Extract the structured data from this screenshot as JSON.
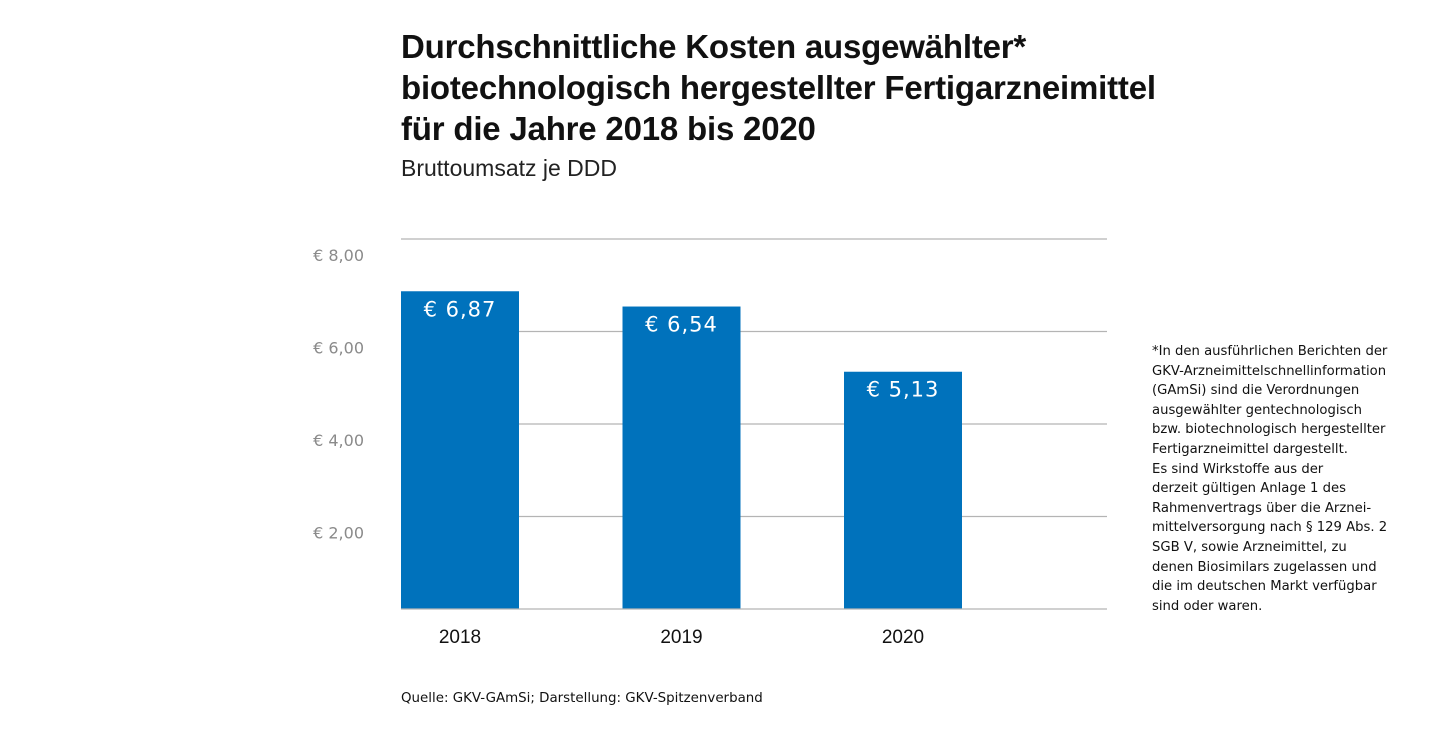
{
  "title_lines": [
    "Durchschnittliche Kosten ausgewählter*",
    "biotechnologisch hergestellter Fertigarzneimittel",
    "für die Jahre 2018 bis 2020"
  ],
  "subtitle": "Bruttoumsatz je DDD",
  "chart_data": {
    "type": "bar",
    "title": "Durchschnittliche Kosten ausgewählter* biotechnologisch hergestellter Fertigarzneimittel für die Jahre 2018 bis 2020",
    "subtitle": "Bruttoumsatz je DDD",
    "categories": [
      "2018",
      "2019",
      "2020"
    ],
    "values": [
      6.87,
      6.54,
      5.13
    ],
    "value_labels": [
      "€ 6,87",
      "€ 6,54",
      "€ 5,13"
    ],
    "yticks": [
      2,
      4,
      6,
      8
    ],
    "ytick_labels": [
      "€ 2,00",
      "€ 4,00",
      "€ 6,00",
      "€ 8,00"
    ],
    "ylim": [
      0,
      8
    ],
    "xlabel": "",
    "ylabel": "",
    "grid": true,
    "bar_color": "#0072BC",
    "grid_color": "#B4B4B4",
    "tick_label_color": "#8A8A8A",
    "value_label_color": "#FFFFFF"
  },
  "footnote_lines": [
    "*In den ausführlichen Berichten der",
    "GKV-Arzneimittelschnellinformation",
    "(GAmSi) sind die Verordnungen",
    "ausgewählter gentechnologisch",
    "bzw. biotechnologisch hergestellter",
    "Fertigarzneimittel dargestellt.",
    "Es sind Wirkstoffe aus der",
    "derzeit gültigen Anlage 1 des",
    "Rahmenvertrags über die Arznei-",
    "mittelversorgung nach § 129 Abs. 2",
    "SGB V, sowie Arzneimittel, zu",
    "denen Biosimilars zugelassen und",
    "die im deutschen Markt verfügbar",
    "sind oder waren."
  ],
  "source": "Quelle: GKV-GAmSi; Darstellung: GKV-Spitzenverband"
}
